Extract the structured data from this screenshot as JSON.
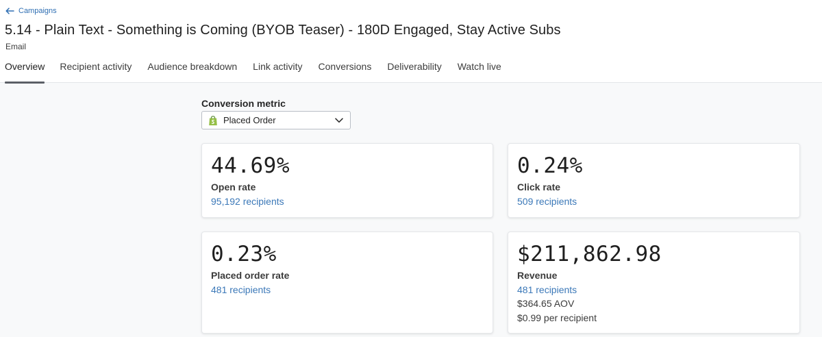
{
  "breadcrumb": {
    "label": "Campaigns"
  },
  "header": {
    "title": "5.14 - Plain Text - Something is Coming (BYOB Teaser) - 180D Engaged, Stay Active Subs",
    "subtitle": "Email"
  },
  "tabs": [
    {
      "label": "Overview",
      "active": true
    },
    {
      "label": "Recipient activity",
      "active": false
    },
    {
      "label": "Audience breakdown",
      "active": false
    },
    {
      "label": "Link activity",
      "active": false
    },
    {
      "label": "Conversions",
      "active": false
    },
    {
      "label": "Deliverability",
      "active": false
    },
    {
      "label": "Watch live",
      "active": false
    }
  ],
  "conversion_metric": {
    "label": "Conversion metric",
    "selected": "Placed Order",
    "icon": "shopify-bag-icon"
  },
  "cards": {
    "open_rate": {
      "value": "44.69%",
      "label": "Open rate",
      "recipients": "95,192 recipients"
    },
    "click_rate": {
      "value": "0.24%",
      "label": "Click rate",
      "recipients": "509 recipients"
    },
    "placed_order_rate": {
      "value": "0.23%",
      "label": "Placed order rate",
      "recipients": "481 recipients"
    },
    "revenue": {
      "value": "$211,862.98",
      "label": "Revenue",
      "recipients": "481 recipients",
      "aov": "$364.65 AOV",
      "per_recipient": "$0.99 per recipient"
    }
  },
  "colors": {
    "link": "#3b78b8",
    "back_link": "#2f6fb3",
    "shopify_green": "#95bf47",
    "tab_indicator": "#5b5f66",
    "page_background": "#f8f9fa"
  }
}
